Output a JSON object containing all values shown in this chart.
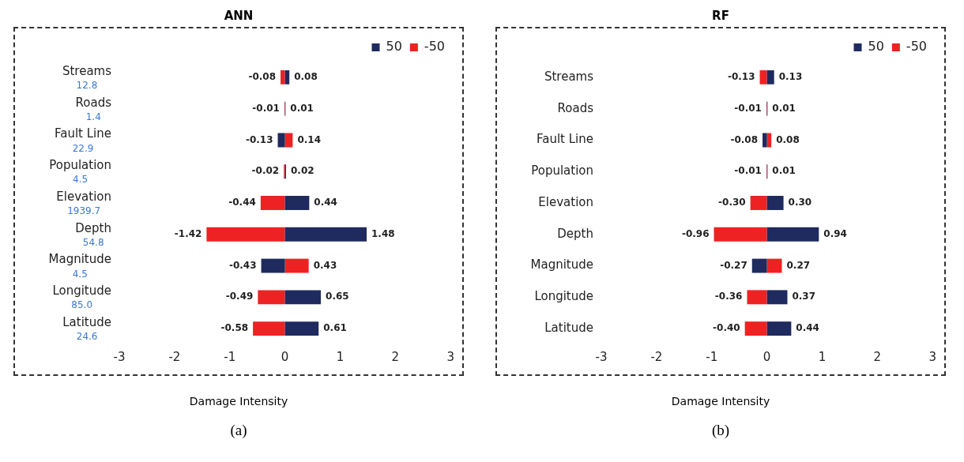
{
  "chart_data": [
    {
      "type": "bar",
      "title": "ANN",
      "xlabel": "Damage Intensity",
      "orientation": "horizontal",
      "stacked": true,
      "categories": [
        "Streams",
        "Roads",
        "Fault Line",
        "Population",
        "Elevation",
        "Depth",
        "Magnitude",
        "Longitude",
        "Latitude"
      ],
      "series": [
        {
          "name": "50",
          "color": "#1f2a5e",
          "values": [
            0.08,
            0.01,
            -0.13,
            0.02,
            0.44,
            1.48,
            -0.43,
            0.65,
            0.61
          ]
        },
        {
          "name": "-50",
          "color": "#ee2222",
          "values": [
            -0.08,
            -0.01,
            0.14,
            -0.02,
            -0.44,
            -1.42,
            0.43,
            -0.49,
            -0.58
          ]
        }
      ],
      "xlim": [
        -3,
        3
      ],
      "xticks": [
        -3,
        -2,
        -1,
        0,
        1,
        2,
        3
      ],
      "grid": false,
      "legend": "top right",
      "data_labels": true,
      "annotations": [
        "(a)",
        "12.8",
        "1.4",
        "22.9",
        "4.5",
        "1939.7",
        "54.8",
        "4.5",
        "85.0",
        "24.6"
      ]
    },
    {
      "type": "bar",
      "title": "RF",
      "xlabel": "Damage Intensity",
      "orientation": "horizontal",
      "stacked": true,
      "categories": [
        "Streams",
        "Roads",
        "Fault Line",
        "Population",
        "Elevation",
        "Depth",
        "Magnitude",
        "Longitude",
        "Latitude"
      ],
      "series": [
        {
          "name": "50",
          "color": "#1f2a5e",
          "values": [
            0.13,
            0.01,
            -0.08,
            0.01,
            0.3,
            0.94,
            -0.27,
            0.37,
            0.44
          ],
          "value_labels": [
            "0.13",
            "0.01",
            "-0.08",
            "0.01",
            "0.30",
            "0.94",
            "-0.27",
            "0.37",
            "0.44"
          ]
        },
        {
          "name": "-50",
          "color": "#ee2222",
          "values": [
            -0.13,
            -0.01,
            0.08,
            -0.01,
            -0.3,
            -0.96,
            0.27,
            -0.36,
            -0.4
          ],
          "value_labels": [
            "-0.13",
            "-0.01",
            "0.08",
            "-0.01",
            "-0.30",
            "-0.96",
            "0.27",
            "-0.36",
            "-0.40"
          ]
        }
      ],
      "xlim": [
        -3,
        3
      ],
      "xticks": [
        -3,
        -2,
        -1,
        0,
        1,
        2,
        3
      ],
      "grid": false,
      "legend": "top right",
      "annotations": [
        "(b)"
      ]
    }
  ]
}
